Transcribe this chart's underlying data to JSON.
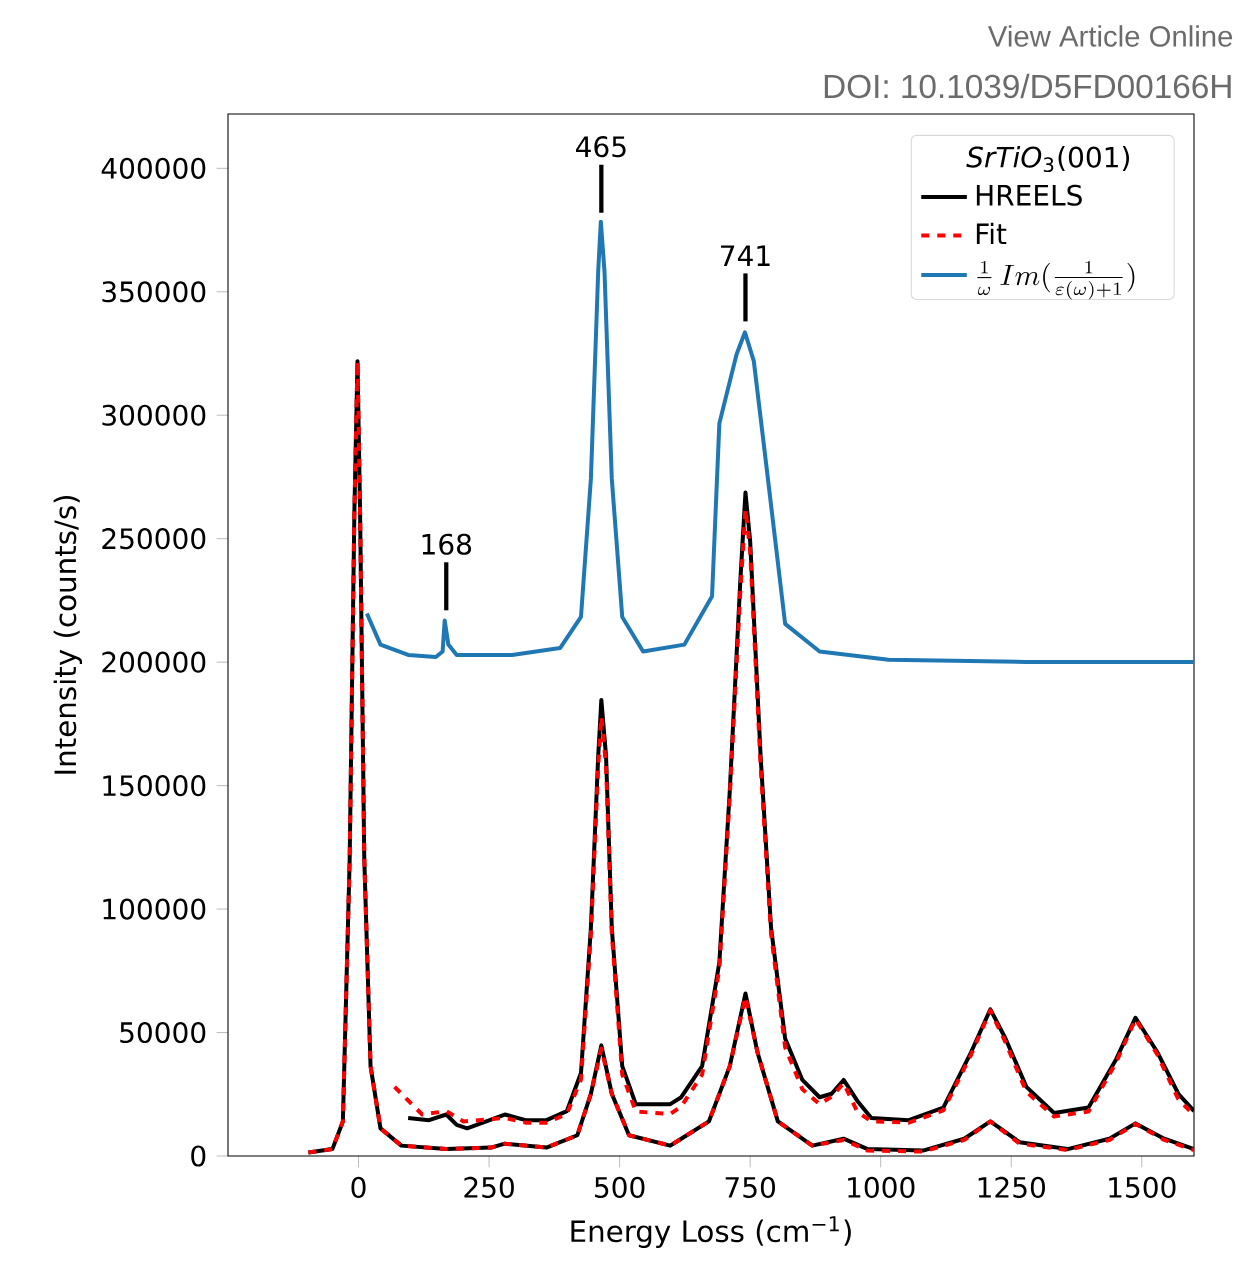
{
  "chart_data": {
    "type": "line",
    "xlabel": "Energy Loss (cm$^{−1}$)",
    "ylabel": "Intensity (counts/s)",
    "legend_title": "*SrTiO*$_{3}$(001)",
    "legend": "top right",
    "grid": false,
    "marker": "none",
    "xlim": [
      -250,
      1600
    ],
    "ylim": [
      0,
      422000
    ],
    "xticks": [
      0,
      250,
      500,
      750,
      1000,
      1250,
      1500
    ],
    "yticks": [
      0,
      50000,
      100000,
      150000,
      200000,
      250000,
      300000,
      350000,
      400000
    ],
    "series": [
      {
        "name": "HREELS",
        "color": "#000000",
        "line_style": "solid",
        "x": [
          95,
          135,
          168,
          188,
          208,
          280,
          320,
          360,
          399,
          426,
          445,
          459,
          465,
          474,
          485,
          505,
          531,
          597,
          618,
          658,
          691,
          711,
          731,
          741,
          750,
          770,
          790,
          817,
          850,
          883,
          906,
          929,
          955,
          982,
          1054,
          1120,
          1173,
          1210,
          1239,
          1279,
          1332,
          1398,
          1451,
          1488,
          1530,
          1570,
          1600
        ],
        "values": [
          15400,
          14500,
          16800,
          12600,
          11200,
          16800,
          14500,
          14500,
          18200,
          33600,
          92400,
          162000,
          184700,
          162000,
          92400,
          36400,
          21000,
          21000,
          23800,
          36400,
          78400,
          148000,
          232300,
          268700,
          249000,
          162000,
          92400,
          47600,
          30800,
          23800,
          25200,
          30800,
          22400,
          15400,
          14500,
          19600,
          42000,
          59400,
          47600,
          28000,
          17400,
          19600,
          39200,
          56000,
          42000,
          25200,
          18200
        ]
      },
      {
        "name": "Fit",
        "color": "#ff0000",
        "line_style": "dashed",
        "x": [
          69,
          122,
          168,
          201,
          280,
          320,
          360,
          399,
          426,
          445,
          459,
          465,
          474,
          485,
          505,
          531,
          597,
          618,
          658,
          691,
          711,
          731,
          741,
          750,
          770,
          790,
          817,
          850,
          883,
          906,
          929,
          955,
          982,
          1054,
          1120,
          1173,
          1210,
          1239,
          1279,
          1332,
          1398,
          1451,
          1488,
          1530,
          1570,
          1600
        ],
        "values": [
          28000,
          16800,
          18200,
          14000,
          15400,
          13500,
          13500,
          17000,
          31000,
          90000,
          158000,
          178000,
          158000,
          90000,
          33000,
          18000,
          17000,
          20000,
          33000,
          76000,
          146000,
          228000,
          262000,
          245000,
          158000,
          90000,
          44000,
          27000,
          21000,
          24000,
          29500,
          18000,
          14000,
          13500,
          18500,
          41000,
          59000,
          46000,
          26000,
          16000,
          18000,
          38000,
          55500,
          41000,
          23000,
          16500
        ]
      },
      {
        "name": "\\frac{1}{\\omega}\\,Im(\\frac{1}{\\varepsilon(\\omega)+1})",
        "color": "#1f77b4",
        "line_style": "solid",
        "x": [
          16,
          42,
          95,
          148,
          161,
          165,
          172,
          188,
          294,
          386,
          426,
          445,
          459,
          464,
          471,
          485,
          505,
          545,
          624,
          677,
          691,
          724,
          740,
          757,
          784,
          817,
          883,
          1015,
          1279,
          1600
        ],
        "values": [
          219700,
          207100,
          202900,
          202100,
          204300,
          216900,
          207100,
          202900,
          202900,
          205700,
          218300,
          274300,
          358300,
          378400,
          358300,
          274300,
          218300,
          204300,
          207100,
          226700,
          296700,
          324700,
          333600,
          321900,
          274300,
          215500,
          204300,
          201000,
          200100,
          200100
        ]
      },
      {
        "color": "#000000",
        "line_style": "solid",
        "x": [
          -96,
          -50,
          -30,
          -17,
          -8,
          -2,
          3,
          11,
          23,
          42,
          82,
          168,
          254,
          280,
          360,
          419,
          445,
          465,
          485,
          518,
          597,
          618,
          671,
          711,
          741,
          764,
          803,
          869,
          929,
          975,
          1081,
          1160,
          1210,
          1266,
          1358,
          1438,
          1488,
          1543,
          1600
        ],
        "values": [
          1400,
          2800,
          14000,
          120000,
          260300,
          321900,
          260300,
          120400,
          36400,
          11200,
          4200,
          2800,
          3400,
          5000,
          3400,
          8400,
          25200,
          44800,
          25200,
          8400,
          4200,
          7000,
          14000,
          36400,
          65800,
          42000,
          14000,
          4200,
          7000,
          2800,
          2200,
          7000,
          14000,
          5600,
          2800,
          7000,
          13200,
          7000,
          2800
        ]
      },
      {
        "color": "#ff0000",
        "line_style": "dashed",
        "x": [
          -96,
          -50,
          -30,
          -17,
          -8,
          -2,
          3,
          11,
          23,
          42,
          82,
          168,
          254,
          280,
          360,
          419,
          445,
          465,
          485,
          518,
          597,
          618,
          671,
          711,
          741,
          764,
          803,
          869,
          929,
          975,
          1081,
          1160,
          1210,
          1266,
          1358,
          1438,
          1488,
          1543,
          1600
        ],
        "values": [
          1400,
          2800,
          14000,
          120000,
          260300,
          321900,
          260300,
          120400,
          36400,
          11200,
          4200,
          2800,
          3400,
          5000,
          3400,
          8400,
          25200,
          43500,
          25200,
          8400,
          4200,
          7000,
          14000,
          36400,
          64500,
          42000,
          14000,
          4200,
          6500,
          2200,
          1800,
          6500,
          14000,
          5000,
          2400,
          6500,
          13000,
          6500,
          2400
        ]
      }
    ],
    "annotations": [
      {
        "text": "168",
        "x": 168,
        "y": 221000
      },
      {
        "text": "465",
        "x": 465,
        "y": 382000
      },
      {
        "text": "741",
        "x": 741,
        "y": 338000
      },
      "View Article Online",
      "DOI: 10.1039/D5FD00166H"
    ]
  }
}
